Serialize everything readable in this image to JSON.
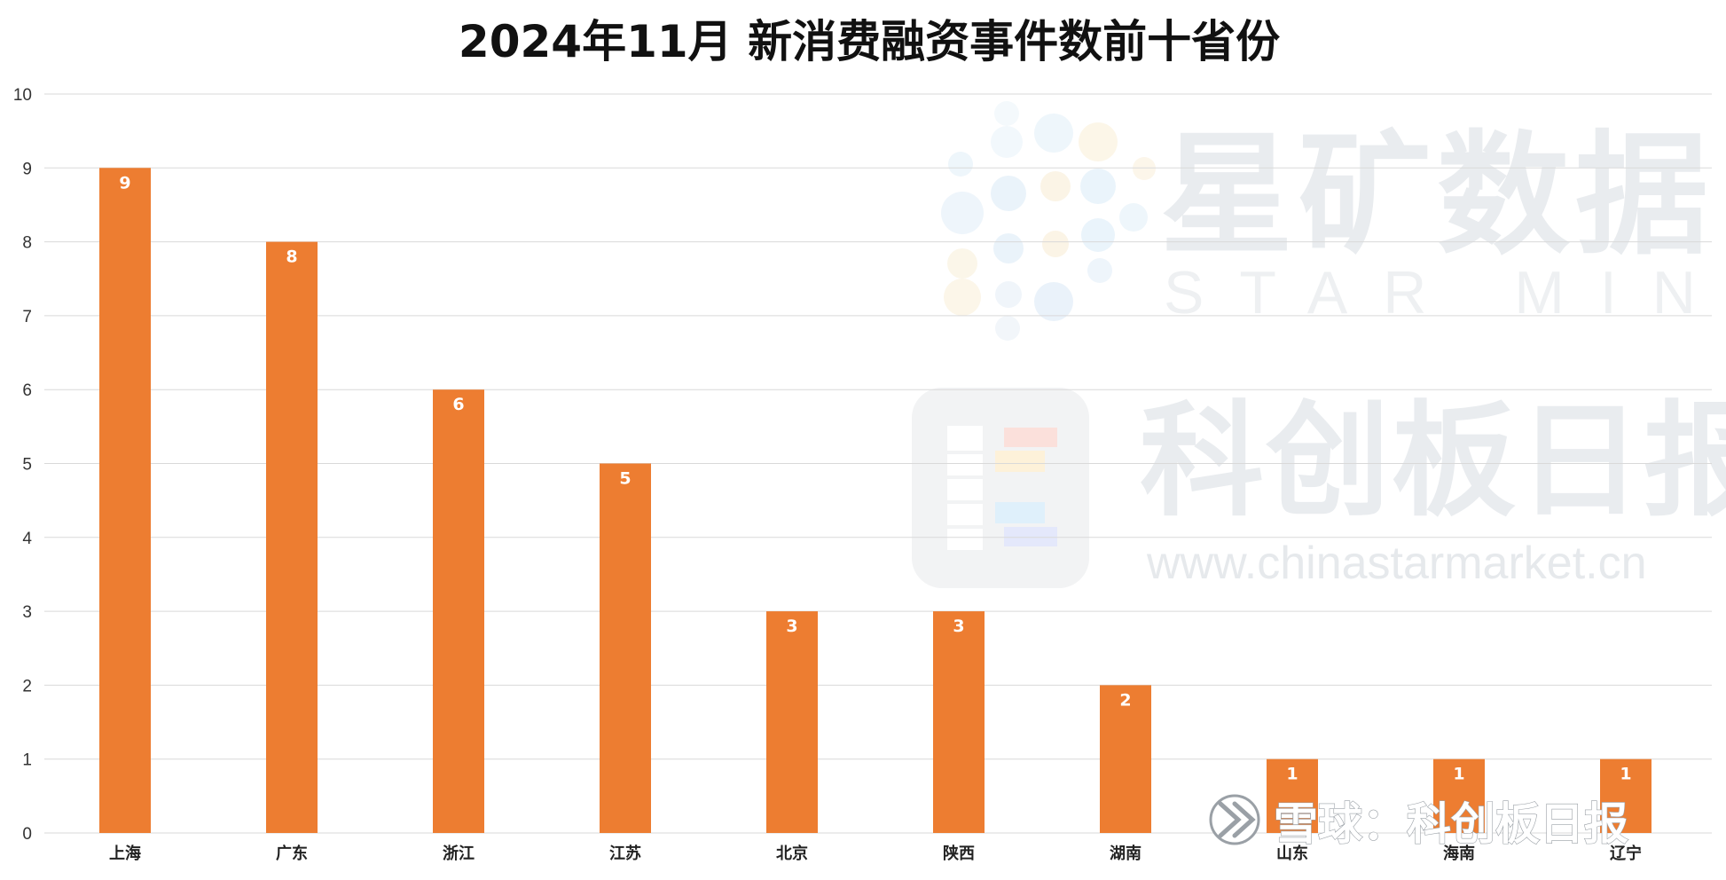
{
  "chart_data": {
    "type": "bar",
    "title": "2024年11月 新消费融资事件数前十省份",
    "categories": [
      "上海",
      "广东",
      "浙江",
      "江苏",
      "北京",
      "陕西",
      "湖南",
      "山东",
      "海南",
      "辽宁"
    ],
    "values": [
      9,
      8,
      6,
      5,
      3,
      3,
      2,
      1,
      1,
      1
    ],
    "data_labels": [
      "9",
      "8",
      "6",
      "5",
      "3",
      "3",
      "2",
      "1",
      "1",
      "1"
    ],
    "yticks": [
      "0",
      "1",
      "2",
      "3",
      "4",
      "5",
      "6",
      "7",
      "8",
      "9",
      "10"
    ],
    "ylim": [
      0,
      10
    ],
    "grid": true,
    "legend": "none",
    "bar_color": "#ED7D31",
    "grid_color": "#D9D9D9"
  },
  "watermarks": {
    "brand_cn": "星矿数据",
    "brand_en": "STAR MINE",
    "publisher_cn": "科创板日报",
    "url": "www.chinastarmarket.cn",
    "xueqiu": "雪球：科创板日报"
  }
}
